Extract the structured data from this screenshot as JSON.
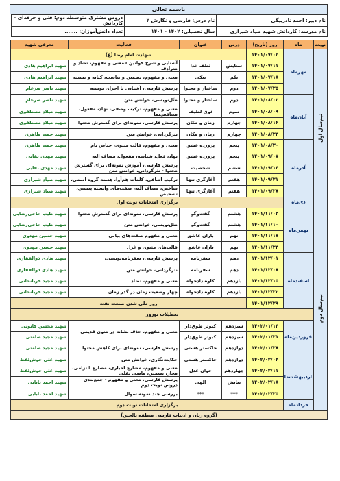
{
  "header": {
    "title": "باسمه تعالی",
    "teacher": "نام دبیر: احمد نادربیگی",
    "course": "نام درس: فارسی و نگارش ۲",
    "program": "دروس مشترک متوسطه دوم: فنی و حرفه‌ای - کاردانش",
    "school": "نام مدرسه: کاردانش شهید صیاد شیرازی",
    "year": "سال تحصیلی: ۱۴۰۲ - ۱۴۰۱",
    "students": "تعداد دانش‌آموزان: ......."
  },
  "table": {
    "columns": [
      "نوبت",
      "ماه",
      "روز (تاریخ)",
      "درس",
      "عنوان",
      "فعالیت",
      "معرفی شهید"
    ],
    "terms": [
      {
        "name": "نیم‌سال اول",
        "months": [
          {
            "name": "مهرماه",
            "rows": [
              {
                "date": "۱۴۰۱/۰۷/۰۲",
                "text": "شهادت امام رضا (ع)"
              },
              {
                "date": "۱۴۰۱/۰۷/۱۱",
                "lesson": "ستایش",
                "topic": "لطف خدا",
                "activity": "آشنایی و شرح قوانین «معنی و مفهوم، تضاد و مترادف",
                "martyr": "شهید ابراهیم هادی"
              },
              {
                "date": "۱۴۰۱/۰۷/۱۸",
                "lesson": "یکم",
                "topic": "نیکی",
                "activity": "معنی و مفهوم، تضمین و تناسب، کنایه و تشبیه",
                "martyr": "شهید ابراهیم هادی"
              },
              {
                "date": "۱۴۰۱/۰۷/۲۵",
                "lesson": "دوم",
                "topic": "ساختار و محتوا",
                "activity": "پرسش فارسی، آشنایی با اجزای نوشته",
                "martyr": "شهید ناصر ضرغام"
              }
            ]
          },
          {
            "name": "آبان‌ماه",
            "rows": [
              {
                "date": "۱۴۰۱/۰۸/۰۲",
                "lesson": "دوم",
                "topic": "ساختار و محتوا",
                "activity": "مَثَل‌نویسی، خوانش متن",
                "martyr": "شهید ناصر ضرغام"
              },
              {
                "date": "۱۴۰۱/۰۸/۰۹",
                "lesson": "سوم",
                "topic": "ذوق لطیف",
                "activity": "معنی و مفهوم، ترکیب وصفی، نهاد، مفعول، متناقض‌نما",
                "martyr": "شهید میلاد مصطفوی"
              },
              {
                "date": "۱۴۰۱/۰۸/۱۶",
                "lesson": "چهارم",
                "topic": "زمان و مکان",
                "activity": "پرسش فارسی، نمونه‌ای برای گسترش محتوا",
                "martyr": "شهید میلاد مصطفوی"
              },
              {
                "date": "۱۴۰۱/۰۸/۲۳",
                "lesson": "چهارم",
                "topic": "زمان و مکان",
                "activity": "نثرگردانی، خوانش متن",
                "martyr": "شهید حمید طاهری"
              }
            ]
          },
          {
            "name": "آذرماه",
            "rows": [
              {
                "date": "۱۴۰۱/۰۸/۳۰",
                "lesson": "پنجم",
                "topic": "پرورده عشق",
                "activity": "معنی و مفهوم، قالب مثنوی، جناس تام",
                "martyr": "شهید حمید طاهری"
              },
              {
                "date": "۱۴۰۱/۰۹/۰۷",
                "lesson": "پنجم",
                "topic": "پرورده عشق",
                "activity": "نهاد، فعل، شناسه، مفعول، مضاف الیه",
                "martyr": "شهید مهدی بقایی"
              },
              {
                "date": "۱۴۰۱/۰۹/۱۴",
                "lesson": "ششم",
                "topic": "شخصیت",
                "activity": "پرسش فارسی، آموزش نمونه‌ای برای گسترش محتوا - نثرگردانی، خوانش متن",
                "martyr": "شهید مهدی بقایی"
              },
              {
                "date": "۱۴۰۱/۰۹/۲۱",
                "lesson": "هفتم",
                "topic": "آغازگری تنها",
                "activity": "ترکیب اضافی، کلمات هم‌آوا، هسته گروه اسمی،",
                "martyr": "شهید صیاد شیرازی"
              },
              {
                "date": "۱۴۰۱/۰۹/۲۸",
                "lesson": "هفتم",
                "topic": "آغازگری تنها",
                "activity": "شاخص، مضاف الیه، صفت‌های وابسته پیشین، تشخیص",
                "martyr": "شهید صیاد شیرازی"
              }
            ]
          },
          {
            "name": "دی‌ماه",
            "rows": [
              {
                "text": "برگزاری امتحانات نوبت اول"
              }
            ]
          }
        ]
      },
      {
        "name": "نیم‌سال دوم",
        "months": [
          {
            "name": "بهمن‌ماه",
            "rows": [
              {
                "date": "۱۴۰۱/۱۱/۰۳",
                "lesson": "هشتم",
                "topic": "گفت‌وگو",
                "activity": "پرسش فارسی، نمونه‌ای برای گسترش محتوا",
                "martyr": "شهید طیب حاجی‌رضایی"
              },
              {
                "date": "۱۴۰۱/۱۱/۱۰",
                "lesson": "هشتم",
                "topic": "گفت‌وگو",
                "activity": "مثل‌نویسی، خوانش متن",
                "martyr": "شهید طیب حاجی‌رضایی"
              },
              {
                "date": "۱۴۰۱/۱۱/۱۷",
                "lesson": "نهم",
                "topic": "باران عاشق",
                "activity": "معنی و مفهوم صفت‌های بیانی",
                "martyr": "شهید حسین مهدوی"
              },
              {
                "date": "۱۴۰۱/۱۱/۲۴",
                "lesson": "نهم",
                "topic": "باران عاشق",
                "activity": "قالب‌های مثنوی و غزل",
                "martyr": "شهید حسین مهدوی"
              }
            ]
          },
          {
            "name": "اسفندماه",
            "rows": [
              {
                "date": "۱۴۰۱/۱۲/۰۱",
                "lesson": "دهم",
                "topic": "سفرنامه",
                "activity": "پرسش فارسی، سفرنامه‌نویسی،",
                "martyr": "شهید هادی ذوالفقاری"
              },
              {
                "date": "۱۴۰۱/۱۲/۰۸",
                "lesson": "دهم",
                "topic": "سفرنامه",
                "activity": "نثرگردانی، خوانش متن",
                "martyr": "شهید هادی ذوالفقاری"
              },
              {
                "date": "۱۴۰۱/۱۲/۱۵",
                "lesson": "یازدهم",
                "topic": "کاوه دادخواه",
                "activity": "معنی و مفهوم، تضاد",
                "martyr": "شهید مجید قربانخانی"
              },
              {
                "date": "۱۴۰۱/۱۲/۲۲",
                "lesson": "یازدهم",
                "topic": "کاوه دادخواه",
                "activity": "چهار وضعیت زمان در گذر زمان",
                "martyr": "شهید مجید قربانخانی"
              },
              {
                "date": "۱۴۰۱/۱۲/۲۹",
                "text": "روز ملی شدن صنعت نفت"
              }
            ]
          },
          {
            "event": "تعطیلات نوروز"
          },
          {
            "name": "فروردین‌ماه",
            "rows": [
              {
                "date": "۱۴۰۲/۰۱/۱۴",
                "lesson": "سیزدهم",
                "topic": "کبوتر طوق‌دار",
                "activity": "معنی و مفهوم، حذف نشانه در متون قدیمی",
                "martyr": "شهید محسن قانونی"
              },
              {
                "date": "۱۴۰۲/۰۱/۲۱",
                "lesson": "سیزدهم",
                "topic": "کبوتر طوق‌دار",
                "martyr": "شهید مجید صامتی"
              },
              {
                "date": "۱۴۰۲/۰۱/۲۸",
                "lesson": "دوازدهم",
                "topic": "خاکستر هستی",
                "activity": "پرسش فارسی، نمونه‌ای برای کاهش محتوا",
                "martyr": "شهید مجید صامتی"
              }
            ]
          },
          {
            "name": "اردیبهشت‌ماه",
            "rows": [
              {
                "date": "۱۴۰۲/۰۲/۰۴",
                "lesson": "دوازدهم",
                "topic": "خاکستر هستی",
                "activity": "حکایت‌نگاری، خوانش متن",
                "martyr": "شهید علی خوش‌لفظ"
              },
              {
                "date": "۱۴۰۲/۰۲/۱۱",
                "lesson": "چهاردهم",
                "topic": "خوان عدل",
                "activity": "معنی و مفهوم، مضارع اخباری، مضارع التزامی، مجاز، تضمین، ماضی نقلی",
                "martyr": "شهید علی خوش‌لفظ"
              },
              {
                "date": "۱۴۰۲/۰۲/۱۸",
                "lesson": "نیایش",
                "topic": "الهی",
                "activity": "پرسش فارسی، معنی و مفهوم - جمع‌بندی دروس نوبت دوم",
                "martyr": "شهید احمد بابایی"
              },
              {
                "date": "۱۴۰۲/۰۲/۲۵",
                "lesson": "***",
                "topic": "***",
                "activity": "بررسی چند نمونه سوال",
                "martyr": "شهید احمد بابایی"
              }
            ]
          },
          {
            "name": "خردادماه",
            "rows": [
              {
                "text": "برگزاری امتحانات نوبت دوم"
              }
            ]
          }
        ]
      }
    ],
    "footer": "(گروه زبان و ادبیات فارسی منطقه تالجین)"
  }
}
